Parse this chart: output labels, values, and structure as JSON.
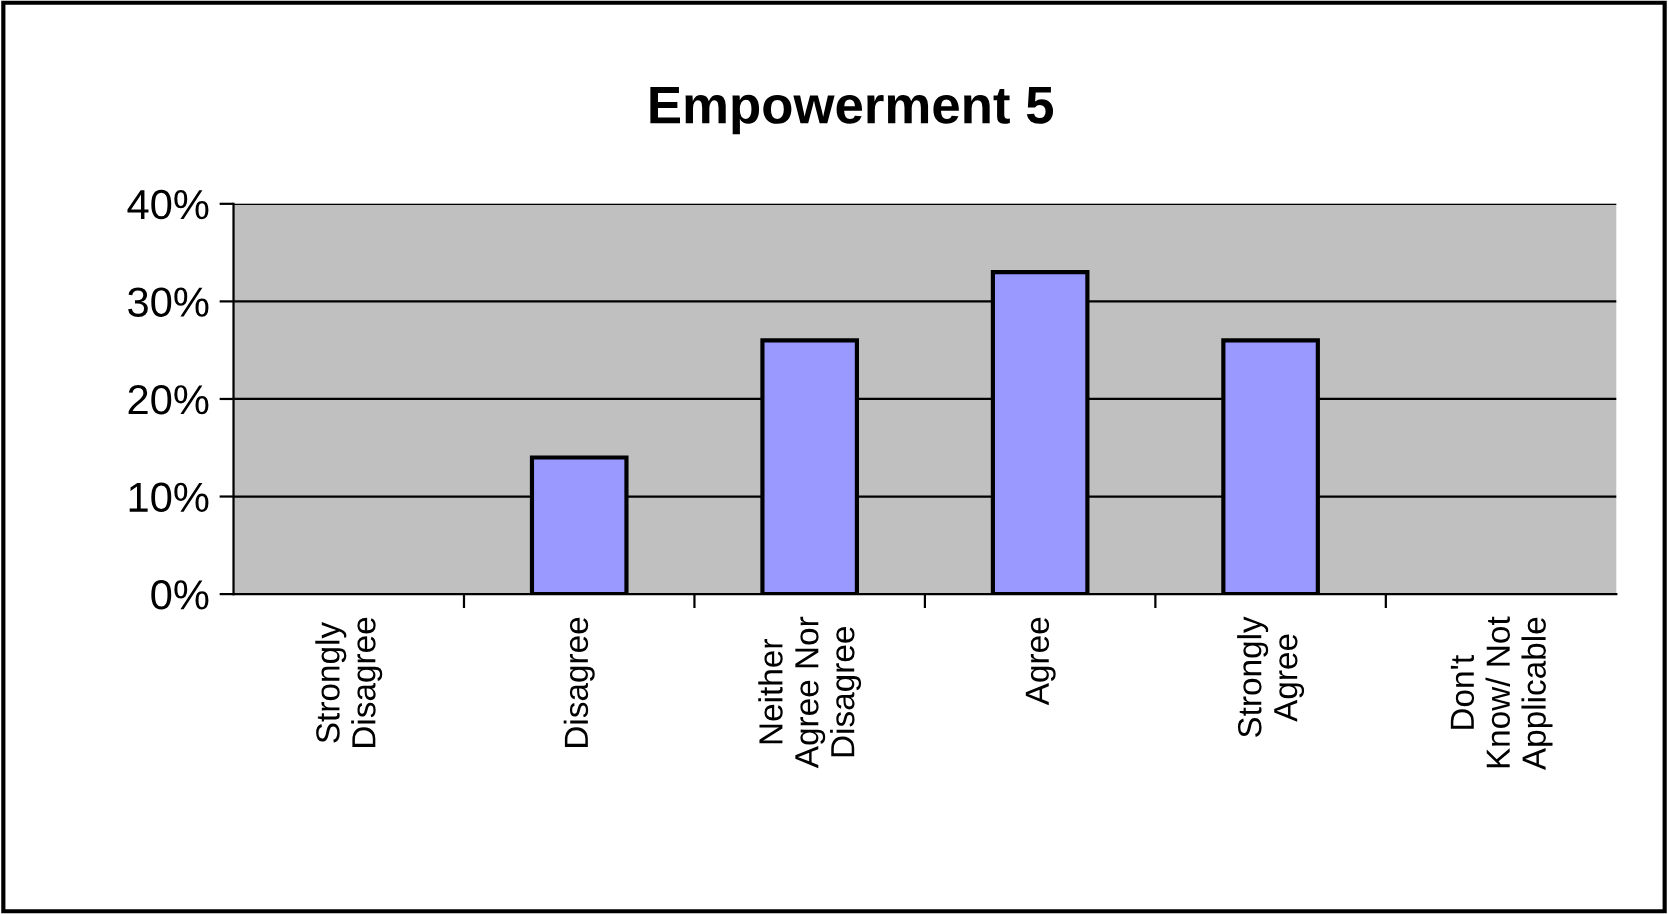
{
  "chart_data": {
    "type": "bar",
    "title": "Empowerment 5",
    "categories": [
      "Strongly\nDisagree",
      "Disagree",
      "Neither\nAgree Nor\nDisagree",
      "Agree",
      "Strongly\nAgree",
      "Don't\nKnow/ Not\nApplicable"
    ],
    "values": [
      0,
      14,
      26,
      33,
      26,
      0
    ],
    "color": "#9999ff",
    "ylim": [
      0,
      40
    ],
    "yticks": [
      {
        "value": 0,
        "label": "0%"
      },
      {
        "value": 10,
        "label": "10%"
      },
      {
        "value": 20,
        "label": "20%"
      },
      {
        "value": 30,
        "label": "30%"
      },
      {
        "value": 40,
        "label": "40%"
      }
    ],
    "grid": "y",
    "legend": false
  }
}
